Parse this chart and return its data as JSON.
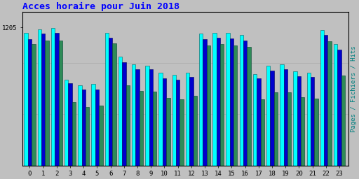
{
  "title": "Acces horaire pour Juin 2018",
  "ylabel_right": "Pages / Fichiers / Hits",
  "hours": [
    0,
    1,
    2,
    3,
    4,
    5,
    6,
    7,
    8,
    9,
    10,
    11,
    12,
    13,
    14,
    15,
    16,
    17,
    18,
    19,
    20,
    21,
    22,
    23
  ],
  "hits": [
    1160,
    1190,
    1200,
    750,
    700,
    710,
    1155,
    950,
    880,
    870,
    810,
    790,
    810,
    1150,
    1160,
    1155,
    1140,
    800,
    870,
    880,
    820,
    810,
    1180,
    1060
  ],
  "fichiers": [
    1100,
    1150,
    1160,
    720,
    660,
    665,
    1115,
    900,
    840,
    840,
    760,
    750,
    775,
    1105,
    1115,
    1110,
    1090,
    760,
    830,
    840,
    780,
    770,
    1140,
    1010
  ],
  "pages": [
    1060,
    1090,
    1090,
    550,
    510,
    520,
    1065,
    700,
    650,
    645,
    590,
    580,
    605,
    1045,
    1060,
    1050,
    1035,
    575,
    640,
    640,
    595,
    585,
    1085,
    785
  ],
  "color_pages": "#2e8b57",
  "color_fichiers": "#0000cd",
  "color_hits": "#00ffff",
  "bg_color": "#c0c0c0",
  "plot_bg": "#c0c0c0",
  "title_color": "#0000ff",
  "ylabel_color": "#008080",
  "ylim": [
    0,
    1340
  ],
  "ytick_val": 1205,
  "bar_width": 0.28,
  "grid_color": "#b0b0b0"
}
